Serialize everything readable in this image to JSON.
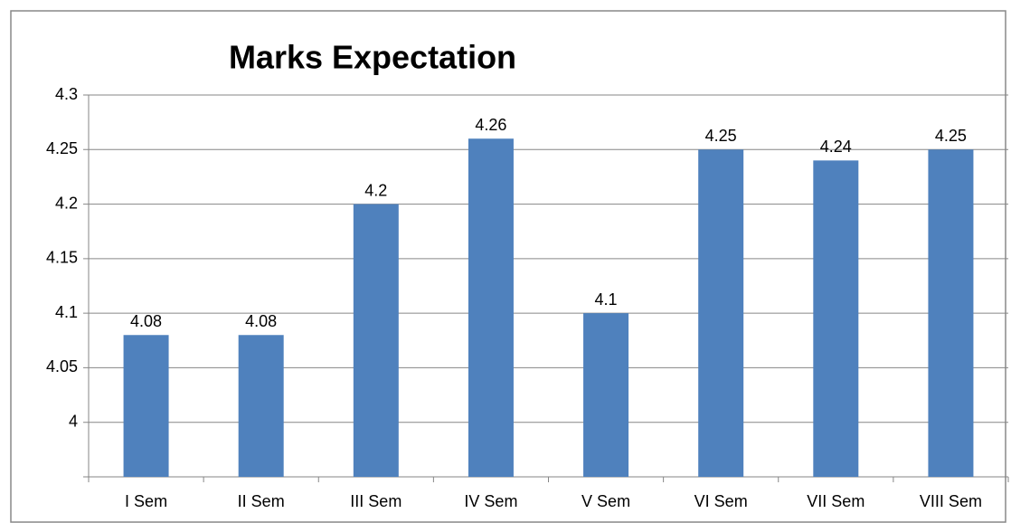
{
  "chart_data": {
    "type": "bar",
    "title": "Marks Expectation",
    "categories": [
      "I Sem",
      "II Sem",
      "III Sem",
      "IV Sem",
      "V Sem",
      "VI Sem",
      "VII Sem",
      "VIII Sem"
    ],
    "values": [
      4.08,
      4.08,
      4.2,
      4.26,
      4.1,
      4.25,
      4.24,
      4.25
    ],
    "color": "#4f81bd",
    "ylim": [
      3.95,
      4.3
    ],
    "yticks": [
      4,
      4.05,
      4.1,
      4.15,
      4.2,
      4.25,
      4.3
    ],
    "grid": true
  }
}
